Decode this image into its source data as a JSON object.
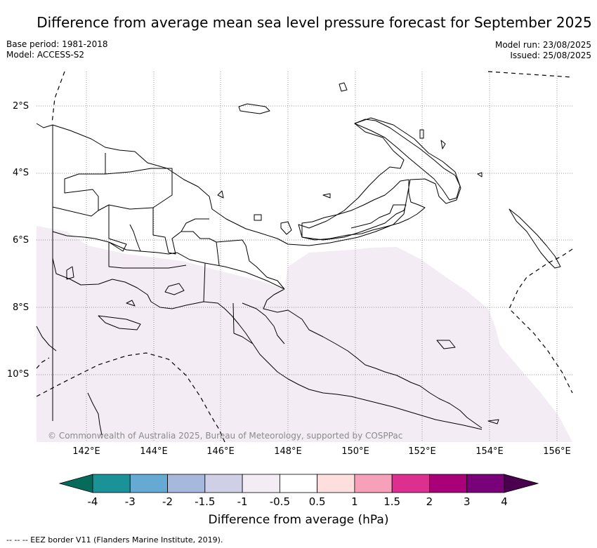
{
  "title": "Difference from average mean sea level pressure forecast for September 2025",
  "meta_left": [
    "Base period: 1981-2018",
    "Model: ACCESS-S2"
  ],
  "meta_right": [
    "Model run: 23/08/2025",
    "Issued: 25/08/2025"
  ],
  "credit": "© Commonwealth of Australia 2025, Bureau of Meteorology, supported by COSPPac",
  "lat_ticks": [
    "2°S",
    "4°S",
    "6°S",
    "8°S",
    "10°S"
  ],
  "lon_ticks": [
    "142°E",
    "144°E",
    "146°E",
    "148°E",
    "150°E",
    "152°E",
    "154°E",
    "156°E"
  ],
  "colorbar": {
    "title": "Difference from average (hPa)",
    "labels": [
      "-4",
      "-3",
      "-2",
      "-1.5",
      "-1",
      "-0.5",
      "0.5",
      "1",
      "1.5",
      "2",
      "3",
      "4"
    ],
    "colors": [
      "#056c5c",
      "#1a9298",
      "#66a9d2",
      "#a6b9dc",
      "#cfd0e6",
      "#f3ecf5",
      "#ffffff",
      "#ffdede",
      "#f7a0b9",
      "#dc2f8f",
      "#a9007a",
      "#790079",
      "#4a004f"
    ]
  },
  "legend_note": "--  --  -- EEZ border V11 (Flanders Marine Institute, 2019).",
  "map_colors": {
    "anomaly_fill": "#f3ecf5",
    "land_stroke": "#000000",
    "grid": "#777777"
  }
}
